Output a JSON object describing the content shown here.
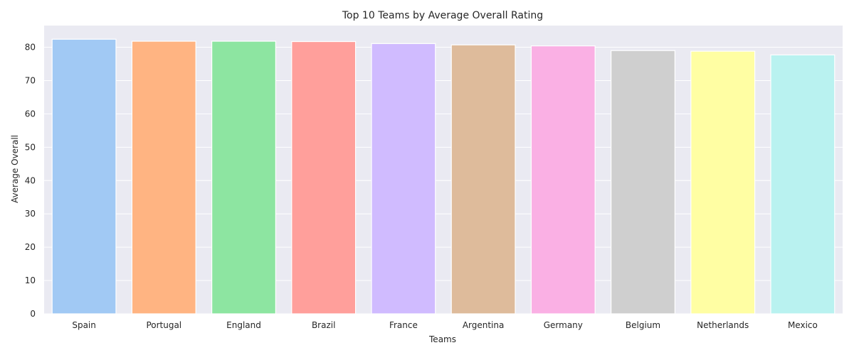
{
  "chart_data": {
    "type": "bar",
    "title": "Top 10 Teams by Average Overall Rating",
    "xlabel": "Teams",
    "ylabel": "Average Overall",
    "categories": [
      "Spain",
      "Portugal",
      "England",
      "Brazil",
      "France",
      "Argentina",
      "Germany",
      "Belgium",
      "Netherlands",
      "Mexico"
    ],
    "values": [
      82.4,
      81.8,
      81.8,
      81.7,
      81.1,
      80.7,
      80.4,
      79.0,
      78.8,
      77.7
    ],
    "colors": [
      "#a1c9f4",
      "#ffb482",
      "#8de5a1",
      "#ff9f9b",
      "#d0bbff",
      "#debb9b",
      "#fab0e4",
      "#cfcfcf",
      "#fffea3",
      "#b9f2f0"
    ],
    "ylim": [
      0,
      86.5
    ],
    "yticks": [
      0,
      10,
      20,
      30,
      40,
      50,
      60,
      70,
      80
    ],
    "grid": true,
    "plot_background": "#eaeaf2"
  }
}
